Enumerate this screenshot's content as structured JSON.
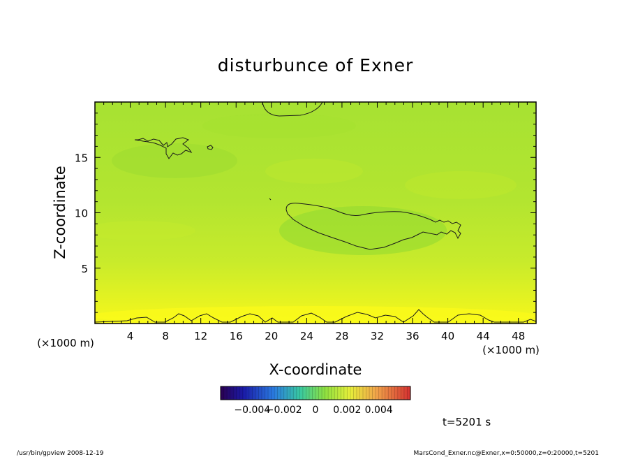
{
  "chart_data": {
    "type": "heatmap",
    "title": "disturbunce of Exner",
    "xlabel": "X-coordinate",
    "ylabel": "Z-coordinate",
    "x_unit": "(×1000 m)",
    "y_unit": "(×1000 m)",
    "xlim": [
      0,
      50
    ],
    "ylim": [
      0,
      20
    ],
    "x_ticks": [
      4,
      8,
      12,
      16,
      20,
      24,
      28,
      32,
      36,
      40,
      44,
      48
    ],
    "y_ticks": [
      5,
      10,
      15
    ],
    "colorbar": {
      "range": [
        -0.006,
        0.006
      ],
      "tick_values": [
        -0.004,
        -0.002,
        0,
        0.002,
        0.004
      ],
      "tick_labels": [
        "−0.004",
        "−0.002",
        "0",
        "0.002",
        "0.004"
      ]
    },
    "time_label": "t=5201 s",
    "field_description": "mostly near-zero positive disturbance; larger (yellow) near surface z<2 km",
    "colors": {
      "field_low": "#9adf32",
      "field_mid": "#c6ea2c",
      "field_high": "#f4f71c",
      "contour": "#1a1a1a"
    }
  },
  "footer": {
    "left": "/usr/bin/gpview   2008-12-19",
    "right": "MarsCond_Exner.nc@Exner,x=0:50000,z=0:20000,t=5201"
  }
}
